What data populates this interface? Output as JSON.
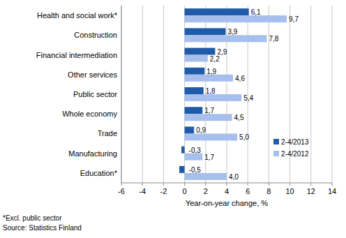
{
  "chart_data": {
    "type": "bar",
    "orientation": "horizontal",
    "categories": [
      "Health and social work*",
      "Construction",
      "Financial intermediation",
      "Other services",
      "Public sector",
      "Whole economy",
      "Trade",
      "Manufacturing",
      "Education*"
    ],
    "series": [
      {
        "name": "2-4/2013",
        "color": "#1f5ba8",
        "values": [
          6.1,
          3.9,
          2.9,
          1.9,
          1.8,
          1.7,
          0.9,
          -0.3,
          -0.5
        ],
        "value_labels": [
          "6,1",
          "3,9",
          "2,9",
          "1,9",
          "1,8",
          "1,7",
          "0,9",
          "-0,3",
          "-0,5"
        ]
      },
      {
        "name": "2-4/2012",
        "color": "#a6bfec",
        "values": [
          9.7,
          7.8,
          2.2,
          4.6,
          5.4,
          4.5,
          5.0,
          1.7,
          4.0
        ],
        "value_labels": [
          "9,7",
          "7,8",
          "2,2",
          "4,6",
          "5,4",
          "4,5",
          "5,0",
          "1,7",
          "4,0"
        ]
      }
    ],
    "xlabel": "Year-on-year change, %",
    "xlim": [
      -6,
      14
    ],
    "xticks": [
      -6,
      -4,
      -2,
      0,
      2,
      4,
      6,
      8,
      10,
      12,
      14
    ],
    "grid": true,
    "legend": "lower right",
    "data_labels": true,
    "notes": [
      "*Excl. public sector",
      "Source: Statistics Finland"
    ]
  }
}
